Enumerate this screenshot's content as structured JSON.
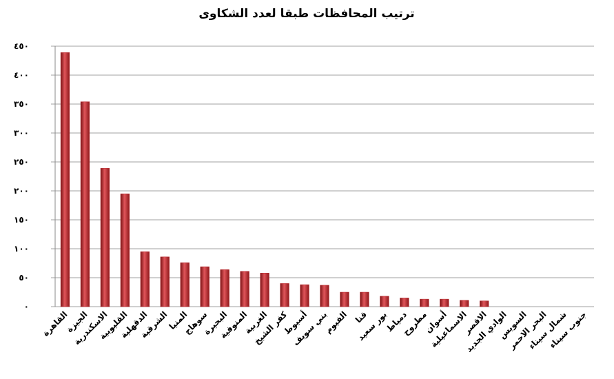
{
  "chart_data": {
    "type": "bar",
    "title": "ترتيب المحافظات طبقا لعدد الشكاوى",
    "categories": [
      "القاهرة",
      "الجيزة",
      "الاسكندرية",
      "القليوبية",
      "الدقهلية",
      "الشرقية",
      "المنيا",
      "سوهاج",
      "البحيرة",
      "المنوفية",
      "الغربية",
      "كفر الشيخ",
      "أسيوط",
      "بني سويف",
      "الفيوم",
      "قنا",
      "بور سعيد",
      "دمياط",
      "مطروح",
      "أسوان",
      "الاسماعيلية",
      "الاقصر",
      "الوادي الجديد",
      "السويس",
      "البحر الاحمر",
      "شمال سيناء",
      "جنوب سيناء"
    ],
    "values": [
      439,
      354,
      239,
      195,
      95,
      86,
      76,
      69,
      64,
      61,
      58,
      40,
      38,
      37,
      25,
      25,
      18,
      15,
      13,
      13,
      11,
      10,
      0,
      0,
      0,
      0,
      0
    ],
    "color": "#b8262a",
    "ylim": [
      0,
      450
    ],
    "yticks": [
      {
        "value": 0,
        "label": "٠"
      },
      {
        "value": 50,
        "label": "٥٠"
      },
      {
        "value": 100,
        "label": "١٠٠"
      },
      {
        "value": 150,
        "label": "١٥٠"
      },
      {
        "value": 200,
        "label": "٢٠٠"
      },
      {
        "value": 250,
        "label": "٢٥٠"
      },
      {
        "value": 300,
        "label": "٣٠٠"
      },
      {
        "value": 350,
        "label": "٣٥٠"
      },
      {
        "value": 400,
        "label": "٤٠٠"
      },
      {
        "value": 450,
        "label": "٤٥٠"
      }
    ],
    "grid": true
  }
}
